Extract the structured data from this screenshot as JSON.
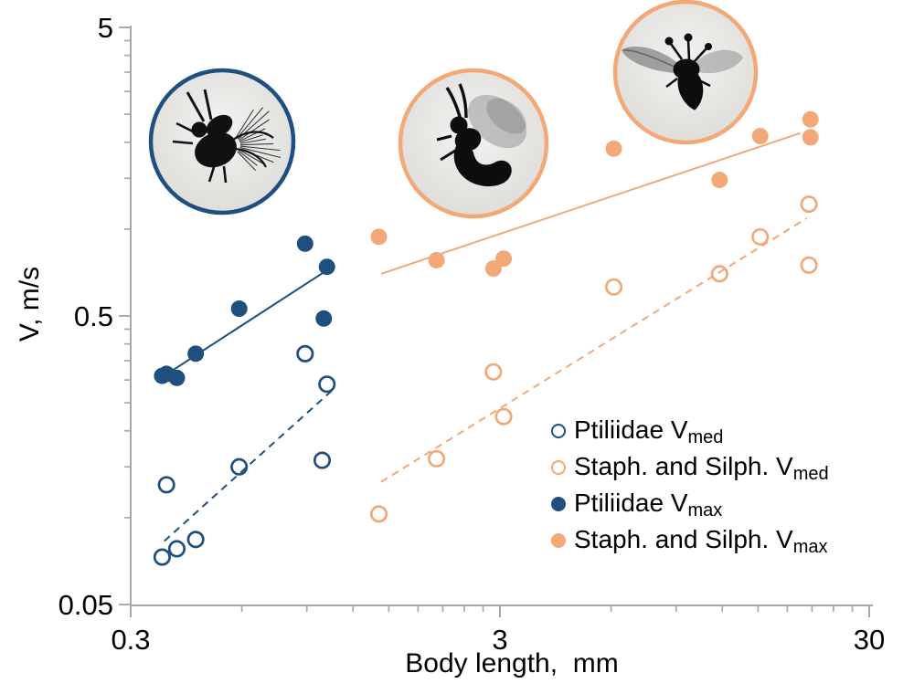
{
  "colors": {
    "blue": "#1E4F7E",
    "orange": "#F2A877",
    "axis": "#A8A8A8",
    "text": "#000000",
    "inset_fill_center": "#f4f3f1",
    "inset_fill_edge": "#d8d7d4"
  },
  "chart_data": {
    "type": "scatter",
    "title": "",
    "xlabel": "Body length,  mm",
    "ylabel": "V, m/s",
    "x_scale": "log",
    "y_scale": "log",
    "xlim": [
      0.3,
      30
    ],
    "ylim": [
      0.05,
      5
    ],
    "x_major_ticks": [
      0.3,
      3,
      30
    ],
    "x_minor_ticks": [
      0.6,
      0.9,
      1.2,
      1.5,
      1.8,
      2.1,
      2.4,
      2.7,
      6,
      9,
      12,
      15,
      18,
      21,
      24,
      27
    ],
    "y_major_ticks": [
      5,
      0.5,
      0.05
    ],
    "y_minor_ticks": [
      4.5,
      4,
      3.5,
      3,
      2.5,
      2,
      1.5,
      1,
      0.45,
      0.4,
      0.35,
      0.3,
      0.25,
      0.2,
      0.15,
      0.1
    ],
    "grid": false,
    "legend_position": "lower right",
    "series": [
      {
        "name": "Ptiliidae Vmed",
        "marker": "open",
        "color_key": "blue",
        "points": [
          [
            0.365,
            0.073
          ],
          [
            0.4,
            0.078
          ],
          [
            0.45,
            0.084
          ],
          [
            0.375,
            0.13
          ],
          [
            0.59,
            0.15
          ],
          [
            0.99,
            0.158
          ],
          [
            0.89,
            0.37
          ],
          [
            1.02,
            0.29
          ]
        ]
      },
      {
        "name": "Staph. and Silph. Vmed",
        "marker": "open",
        "color_key": "orange",
        "points": [
          [
            1.41,
            0.103
          ],
          [
            2.02,
            0.16
          ],
          [
            3.07,
            0.224
          ],
          [
            2.88,
            0.32
          ],
          [
            6.1,
            0.63
          ],
          [
            11.8,
            0.7
          ],
          [
            15.2,
            0.94
          ],
          [
            20.6,
            0.75
          ],
          [
            20.6,
            1.22
          ]
        ]
      },
      {
        "name": "Ptiliidae Vmax",
        "marker": "filled",
        "color_key": "blue",
        "points": [
          [
            0.365,
            0.31
          ],
          [
            0.375,
            0.315
          ],
          [
            0.4,
            0.305
          ],
          [
            0.45,
            0.37
          ],
          [
            0.59,
            0.53
          ],
          [
            0.89,
            0.89
          ],
          [
            1.0,
            0.49
          ],
          [
            1.02,
            0.74
          ]
        ]
      },
      {
        "name": "Staph. and Silph. Vmax",
        "marker": "filled",
        "color_key": "orange",
        "points": [
          [
            1.41,
            0.94
          ],
          [
            2.02,
            0.78
          ],
          [
            2.88,
            0.73
          ],
          [
            3.07,
            0.79
          ],
          [
            6.1,
            1.9
          ],
          [
            11.8,
            1.48
          ],
          [
            15.2,
            2.1
          ],
          [
            20.8,
            2.4
          ],
          [
            20.8,
            2.08
          ]
        ]
      }
    ],
    "trendlines": [
      {
        "series": "Ptiliidae Vmax",
        "style": "solid",
        "color_key": "blue",
        "from": [
          0.355,
          0.3
        ],
        "to": [
          1.02,
          0.72
        ]
      },
      {
        "series": "Ptiliidae Vmed",
        "style": "dashed",
        "color_key": "blue",
        "from": [
          0.37,
          0.083
        ],
        "to": [
          1.05,
          0.275
        ]
      },
      {
        "series": "Staph. and Silph. Vmax",
        "style": "solid",
        "color_key": "orange",
        "from": [
          1.43,
          0.7
        ],
        "to": [
          19.5,
          2.15
        ]
      },
      {
        "series": "Staph. and Silph. Vmed",
        "style": "dashed",
        "color_key": "orange",
        "from": [
          1.43,
          0.133
        ],
        "to": [
          20.3,
          1.09
        ]
      }
    ]
  },
  "legend": {
    "items": [
      {
        "label": "Ptiliidae V",
        "sub": "med",
        "marker": "open",
        "color_key": "blue"
      },
      {
        "label": "Staph. and Silph. V",
        "sub": "med",
        "marker": "open",
        "color_key": "orange"
      },
      {
        "label": "Ptiliidae V",
        "sub": "max",
        "marker": "filled",
        "color_key": "blue"
      },
      {
        "label": "Staph. and Silph. V",
        "sub": "max",
        "marker": "filled",
        "color_key": "orange"
      }
    ]
  },
  "insets": [
    {
      "name": "ptiliidae-photo",
      "border_color_key": "blue",
      "subject": "Ptiliidae featherwing beetle in flight"
    },
    {
      "name": "staphylinidae-photo",
      "border_color_key": "orange",
      "subject": "Staphylinidae rove beetle in flight"
    },
    {
      "name": "silphidae-photo",
      "border_color_key": "orange",
      "subject": "large staphylinoid beetle in flight"
    }
  ]
}
